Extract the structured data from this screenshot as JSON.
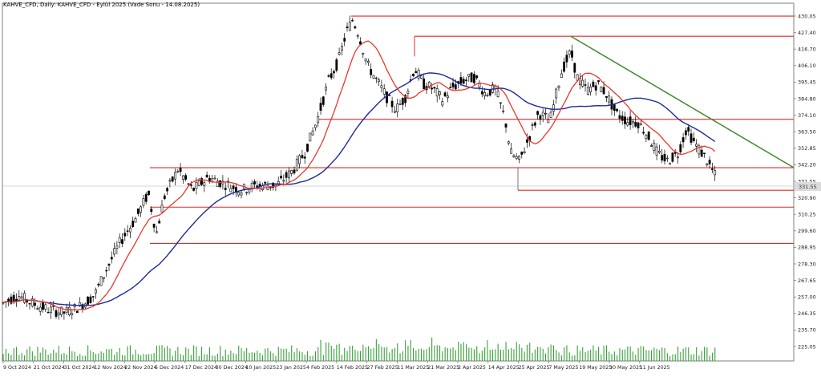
{
  "chart_data": {
    "type": "candlestick",
    "title": "KAHVE_CFD, Daily: KAHVE_CFD - Eylül 2025 (Vade Sonu - 14.08.2025)",
    "y_ticks": [
      "430.05",
      "427.40",
      "416.70",
      "406.10",
      "395.45",
      "384.80",
      "374.10",
      "363.50",
      "352.85",
      "342.20",
      "331.55",
      "320.90",
      "310.25",
      "299.60",
      "288.95",
      "278.30",
      "267.65",
      "257.00",
      "246.35",
      "235.70",
      "225.05"
    ],
    "current_price_label": "331.55",
    "x_ticks": [
      "9 Oct 2024",
      "21 Oct 2024",
      "31 Oct 2024",
      "12 Nov 2024",
      "22 Nov 2024",
      "5 Dec 2024",
      "17 Dec 2024",
      "30 Dec 2024",
      "10 Jan 2025",
      "23 Jan 2025",
      "4 Feb 2025",
      "14 Feb 2025",
      "27 Feb 2025",
      "11 Mar 2025",
      "21 Mar 2025",
      "2 Apr 2025",
      "14 Apr 2025",
      "25 Apr 2025",
      "7 May 2025",
      "19 May 2025",
      "30 May 2025",
      "11 Jun 2025"
    ],
    "horizontal_levels": [
      430.0,
      417.5,
      366.0,
      336.0,
      322.0,
      311.5,
      289.0
    ],
    "trendline": {
      "from": {
        "x": "25 Apr 2025",
        "y": 417.5
      },
      "to": {
        "x": "after 11 Jun 2025",
        "y": 336.0
      }
    },
    "colors": {
      "support_resistance": "#dd2a2a",
      "trendline": "#3e8a2c",
      "ma_fast": "#e8382c",
      "ma_slow": "#1c2b9a",
      "volume": "#3aa03a",
      "candles": "#000000"
    },
    "ylim": [
      221.0,
      436.0
    ]
  }
}
